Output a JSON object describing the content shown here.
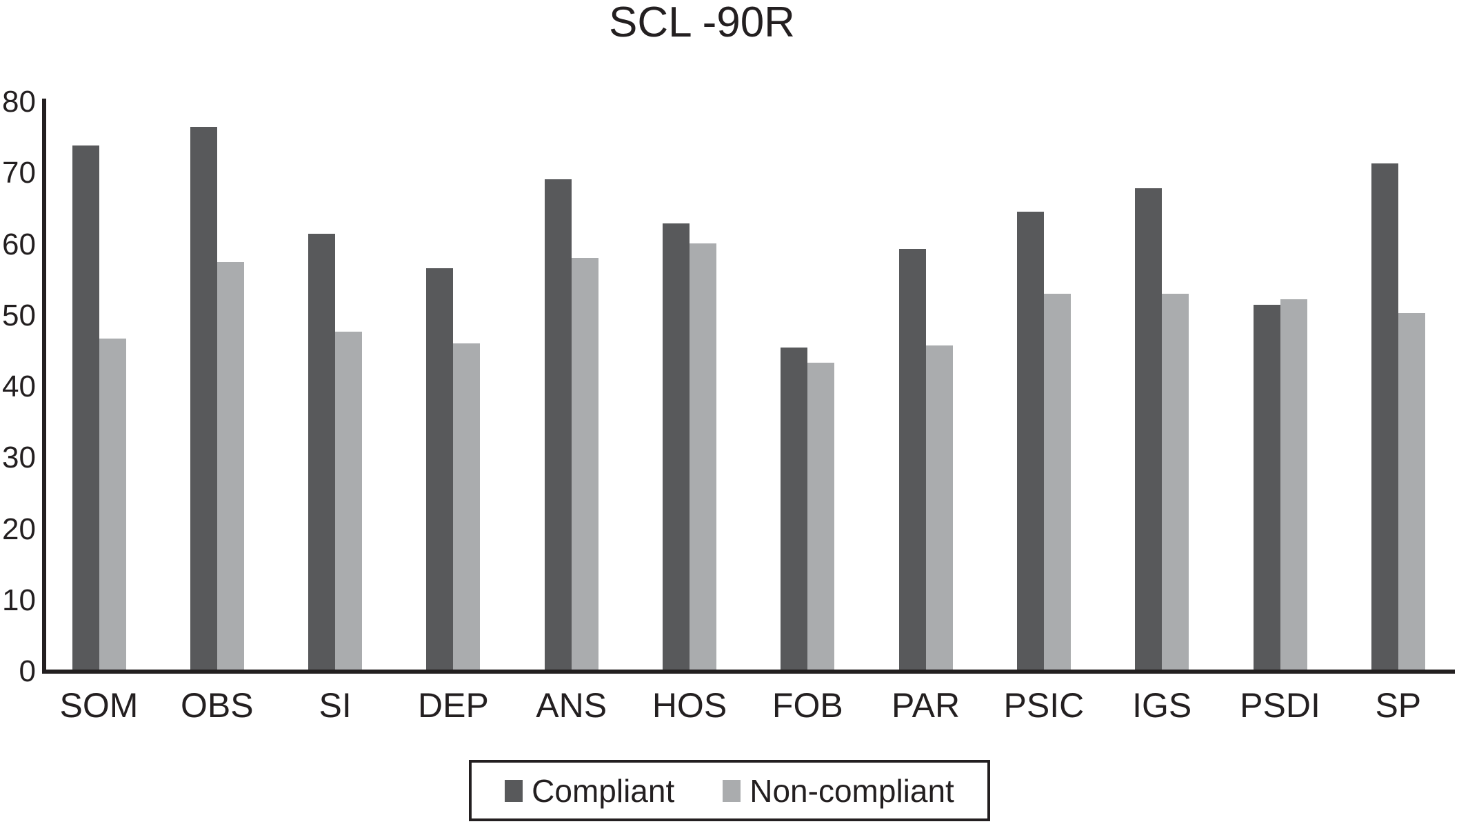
{
  "chart_data": {
    "type": "bar",
    "title": "SCL -90R",
    "categories": [
      "SOM",
      "OBS",
      "SI",
      "DEP",
      "ANS",
      "HOS",
      "FOB",
      "PAR",
      "PSIC",
      "IGS",
      "PSDI",
      "SP"
    ],
    "series": [
      {
        "name": "Compliant",
        "color": "#58595b",
        "values": [
          73.9,
          76.5,
          61.5,
          56.7,
          69.2,
          63.0,
          45.5,
          59.4,
          64.6,
          67.9,
          51.5,
          71.4
        ]
      },
      {
        "name": "Non-compliant",
        "color": "#aaacae",
        "values": [
          46.8,
          57.5,
          47.7,
          46.1,
          58.1,
          60.1,
          43.4,
          45.8,
          53.1,
          53.1,
          52.3,
          50.4
        ]
      }
    ],
    "ylim": [
      0,
      80
    ],
    "yticks": [
      0,
      10,
      20,
      30,
      40,
      50,
      60,
      70,
      80
    ],
    "grid": false,
    "legend_position": "bottom",
    "axis_color": "#231f20",
    "background_color": "#ffffff"
  }
}
